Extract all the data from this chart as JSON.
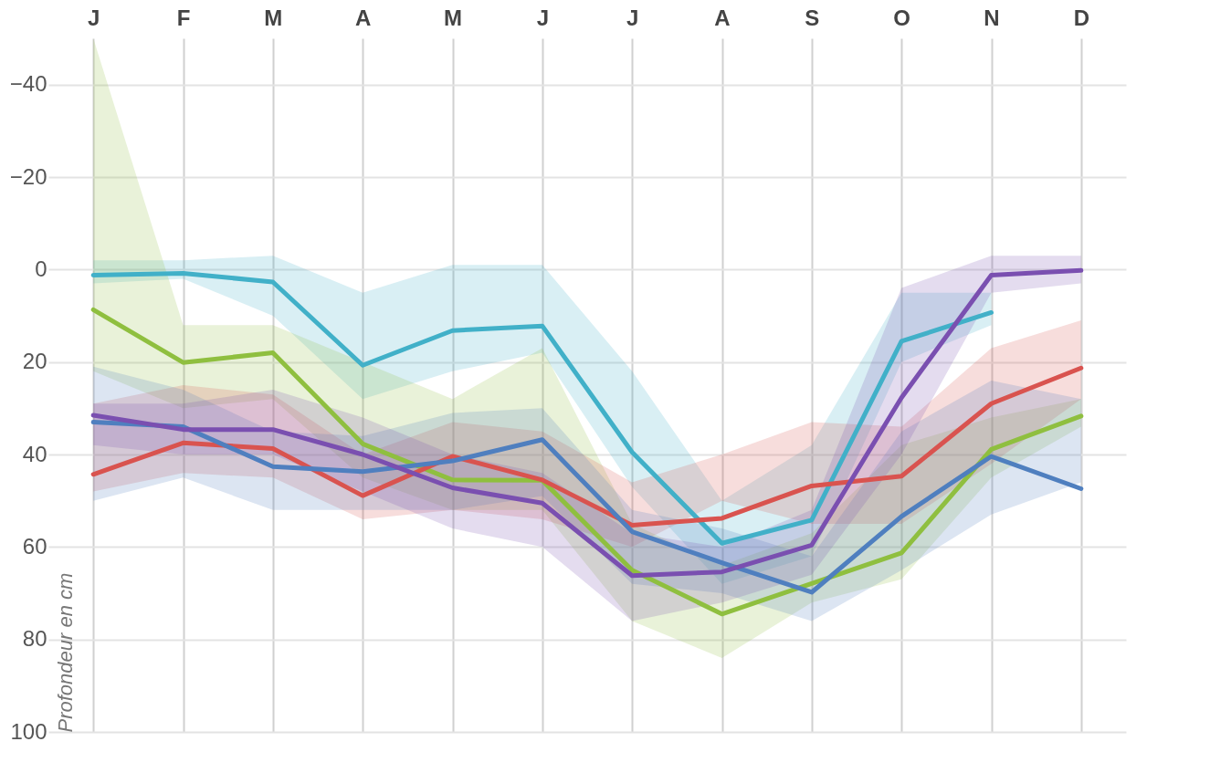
{
  "chart_data": {
    "type": "line",
    "ylabel": "Profondeur en cm",
    "categories": [
      "J",
      "F",
      "M",
      "A",
      "M",
      "J",
      "J",
      "A",
      "S",
      "O",
      "N",
      "D"
    ],
    "ylim": [
      100,
      -50
    ],
    "yticks": [
      -40,
      -20,
      0,
      20,
      40,
      60,
      80,
      100
    ],
    "grid": true,
    "legend": false,
    "series": [
      {
        "color": "#41b0c8",
        "values": [
          1.2,
          0.8,
          2.7,
          20.7,
          13.2,
          12.2,
          39.5,
          59.2,
          54.2,
          15.5,
          9.3,
          null
        ],
        "lower": [
          -2,
          -2,
          -3,
          5,
          -1,
          -1,
          22,
          50,
          38,
          5,
          5,
          null
        ],
        "upper": [
          3,
          2,
          10,
          28,
          22,
          18,
          47,
          68,
          62,
          20,
          12,
          null
        ]
      },
      {
        "color": "#8fbf3f",
        "values": [
          8.7,
          20.1,
          18,
          37.7,
          45.5,
          45.6,
          65,
          74.5,
          67.9,
          61.3,
          38.9,
          31.7
        ],
        "lower": [
          -50,
          12,
          12,
          20,
          28,
          17,
          55,
          64,
          57,
          38,
          32,
          28
        ],
        "upper": [
          22,
          30,
          28,
          45,
          52,
          52,
          76,
          84,
          72,
          67,
          45,
          34
        ]
      },
      {
        "color": "#d9534f",
        "values": [
          44.3,
          37.5,
          38.7,
          48.9,
          40.4,
          45.5,
          55.3,
          53.8,
          46.8,
          44.7,
          29,
          21.3
        ],
        "lower": [
          29,
          25,
          27,
          40,
          33,
          35,
          46,
          40,
          33,
          34,
          17,
          11
        ],
        "upper": [
          48,
          44,
          45,
          54,
          52,
          54,
          60,
          50,
          55,
          55,
          42,
          28
        ]
      },
      {
        "color": "#4f7fbf",
        "values": [
          33,
          34,
          42.6,
          43.7,
          41.4,
          36.8,
          56.7,
          63.4,
          69.8,
          53.4,
          40.4,
          47.4
        ],
        "lower": [
          21,
          26,
          35,
          36,
          31,
          30,
          52,
          56,
          62,
          35,
          24,
          28
        ],
        "upper": [
          50,
          45,
          52,
          52,
          52,
          49,
          68,
          70,
          76,
          65,
          53,
          46
        ]
      },
      {
        "color": "#7a4fb0",
        "values": [
          31.5,
          34.6,
          34.6,
          40,
          47.2,
          50.5,
          66.2,
          65.4,
          59.6,
          27.7,
          1.2,
          0.2
        ],
        "lower": [
          29,
          29,
          26,
          32,
          40,
          44,
          57,
          60,
          52,
          4,
          -3,
          -3
        ],
        "upper": [
          38,
          40,
          40,
          48,
          56,
          60,
          76,
          72,
          66,
          40,
          5,
          3
        ]
      }
    ]
  }
}
